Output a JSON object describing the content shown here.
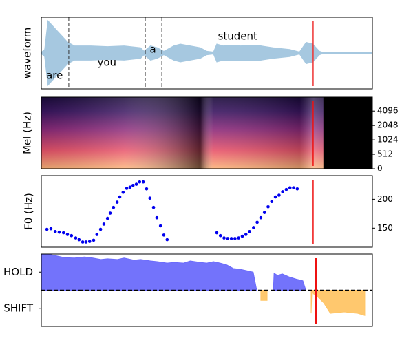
{
  "chart_data": [
    {
      "type": "waveform",
      "ylabel": "waveform",
      "color": "#a6c8e0",
      "xlim": [
        0,
        100
      ],
      "ylim": [
        -1,
        1
      ],
      "x": [
        0,
        1,
        2,
        3,
        4,
        5,
        6,
        7,
        8,
        10,
        15,
        20,
        25,
        30,
        31,
        33,
        35,
        37,
        40,
        42,
        45,
        48,
        50,
        52,
        53,
        55,
        58,
        60,
        65,
        70,
        75,
        78,
        80,
        82,
        84,
        85,
        88,
        90,
        95,
        100
      ],
      "values": [
        0.02,
        0.1,
        0.9,
        0.8,
        0.7,
        0.6,
        0.5,
        0.4,
        0.3,
        0.2,
        0.2,
        0.18,
        0.2,
        0.15,
        0.05,
        0.2,
        0.15,
        0.05,
        0.2,
        0.25,
        0.2,
        0.15,
        0.05,
        0.03,
        0.25,
        0.2,
        0.22,
        0.2,
        0.22,
        0.15,
        0.1,
        0.03,
        0.3,
        0.25,
        0.05,
        0.02,
        0.02,
        0.02,
        0.02,
        0.02
      ],
      "boundaries": [
        8.3,
        31.4,
        36.4
      ],
      "annotations": [
        {
          "text": "are",
          "x": 4.0,
          "y": -0.63
        },
        {
          "text": "you",
          "x": 19.8,
          "y": -0.27
        },
        {
          "text": "a",
          "x": 33.7,
          "y": 0.1
        },
        {
          "text": "student",
          "x": 59.3,
          "y": 0.46
        }
      ],
      "marker": 82,
      "marker_color": "#ee3333"
    },
    {
      "type": "spectrogram",
      "ylabel": "Mel (Hz)",
      "xlim": [
        0,
        100
      ],
      "ylim": [
        0,
        8000
      ],
      "yscale": "symlog2",
      "linthresh": 512,
      "yticks": [
        0,
        512,
        1024,
        2048,
        4096
      ],
      "ytick_side": "right",
      "silence_start": 85.2,
      "marker": 82,
      "marker_color": "#ee1111"
    },
    {
      "type": "scatter",
      "ylabel": "F0 (Hz)",
      "color": "#0000ee",
      "xlim": [
        0,
        100
      ],
      "ylim": [
        117,
        241
      ],
      "yticks": [
        150,
        200
      ],
      "ytick_side": "right",
      "x": [
        1.7,
        2.9,
        4.2,
        5.4,
        6.7,
        7.9,
        9.1,
        10.4,
        11.4,
        12.5,
        13.5,
        14.6,
        15.8,
        16.8,
        17.9,
        18.9,
        20.0,
        20.8,
        21.8,
        22.9,
        23.7,
        24.7,
        25.8,
        26.8,
        27.7,
        28.7,
        29.7,
        30.8,
        31.8,
        32.8,
        33.9,
        34.9,
        36.0,
        37.0,
        38.0,
        53.0,
        54.1,
        55.2,
        56.3,
        57.4,
        58.5,
        59.6,
        60.7,
        61.8,
        62.9,
        64.1,
        65.2,
        66.3,
        67.4,
        68.5,
        69.6,
        70.7,
        71.8,
        72.9,
        74.0,
        75.1,
        76.2,
        77.3
      ],
      "values": [
        148,
        149,
        144,
        143,
        142,
        139,
        137,
        133,
        130,
        126,
        126,
        127,
        129,
        139,
        148,
        157,
        167,
        176,
        186,
        195,
        204,
        212,
        219,
        221,
        224,
        226,
        230,
        230,
        218,
        202,
        186,
        168,
        154,
        138,
        130,
        142,
        137,
        133,
        132,
        132,
        132,
        133,
        136,
        139,
        144,
        151,
        160,
        168,
        177,
        187,
        196,
        204,
        207,
        213,
        217,
        220,
        220,
        218
      ],
      "marker": 82,
      "marker_color": "#ee1111"
    },
    {
      "type": "area",
      "xlim": [
        0,
        100
      ],
      "ylim": [
        -1,
        1
      ],
      "yticks": [
        {
          "value": 0.5,
          "label": "HOLD"
        },
        {
          "value": -0.5,
          "label": "SHIFT"
        }
      ],
      "ytick_side": "left",
      "zero_line": true,
      "series": [
        {
          "color": "#6b6bfb",
          "x": [
            0,
            3,
            5,
            7,
            10,
            13,
            15,
            18,
            20,
            23,
            25,
            28,
            30,
            33,
            35,
            38,
            40,
            43,
            45,
            48,
            50,
            52,
            54,
            56,
            58,
            60,
            62,
            64,
            65,
            67,
            70.1,
            70.3,
            71.3,
            72.8,
            74.8,
            76.9,
            79,
            79.8
          ],
          "values": [
            0.98,
            0.98,
            0.94,
            0.9,
            0.89,
            0.92,
            0.9,
            0.85,
            0.87,
            0.85,
            0.89,
            0.83,
            0.85,
            0.81,
            0.79,
            0.75,
            0.77,
            0.75,
            0.81,
            0.77,
            0.75,
            0.79,
            0.75,
            0.7,
            0.6,
            0.58,
            0.54,
            0.5,
            0.03,
            null,
            0.03,
            0.47,
            0.41,
            0.45,
            0.37,
            0.31,
            0.26,
            0.03
          ]
        },
        {
          "color": "#ffc566",
          "x": [
            66.3,
            68.2,
            75,
            81.5,
            81.7,
            83.2,
            85.3,
            87.3,
            91.5,
            95.6,
            97.7
          ],
          "values": [
            -0.28,
            -0.28,
            null,
            -0.64,
            -0.07,
            -0.16,
            -0.35,
            -0.64,
            -0.6,
            -0.64,
            -0.7
          ]
        }
      ],
      "marker": 83,
      "marker_color": "#ee1111"
    }
  ]
}
